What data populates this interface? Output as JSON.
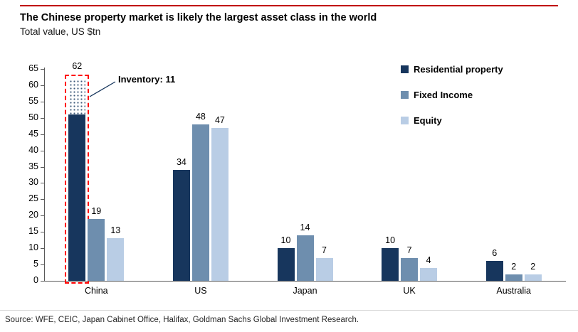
{
  "header": {
    "title": "The Chinese property market is likely the largest asset class in the world",
    "subtitle": "Total value, US $tn"
  },
  "chart_data": {
    "type": "bar",
    "title": "The Chinese property market is likely the largest asset class in the world",
    "ylabel_unit": "Total value, US $tn",
    "categories": [
      "China",
      "US",
      "Japan",
      "UK",
      "Australia"
    ],
    "series": [
      {
        "name": "Residential property",
        "color": "#17365D",
        "values": [
          62,
          34,
          10,
          10,
          6
        ]
      },
      {
        "name": "Fixed Income",
        "color": "#6E8EAE",
        "values": [
          19,
          48,
          14,
          7,
          2
        ]
      },
      {
        "name": "Equity",
        "color": "#B9CDE5",
        "values": [
          13,
          47,
          7,
          4,
          2
        ]
      }
    ],
    "ylim": [
      0,
      65
    ],
    "yticks": [
      0,
      5,
      10,
      15,
      20,
      25,
      30,
      35,
      40,
      45,
      50,
      55,
      60,
      65
    ],
    "grid": false,
    "legend_position": "top-right",
    "annotation": {
      "label": "Inventory: 11",
      "value": 11,
      "category": "China",
      "series": "Residential property"
    },
    "highlight": {
      "category": "China",
      "series": "Residential property",
      "style": "red-dashed-outline",
      "color": "#FF0000"
    }
  },
  "footer": {
    "source": "Source: WFE, CEIC, Japan Cabinet Office, Halifax, Goldman Sachs Global Investment Research."
  },
  "colors": {
    "residential": "#17365D",
    "fixed_income": "#6E8EAE",
    "equity": "#B9CDE5",
    "highlight_red": "#FF0000",
    "top_rule_red": "#C00000",
    "axis_gray": "#595959"
  }
}
